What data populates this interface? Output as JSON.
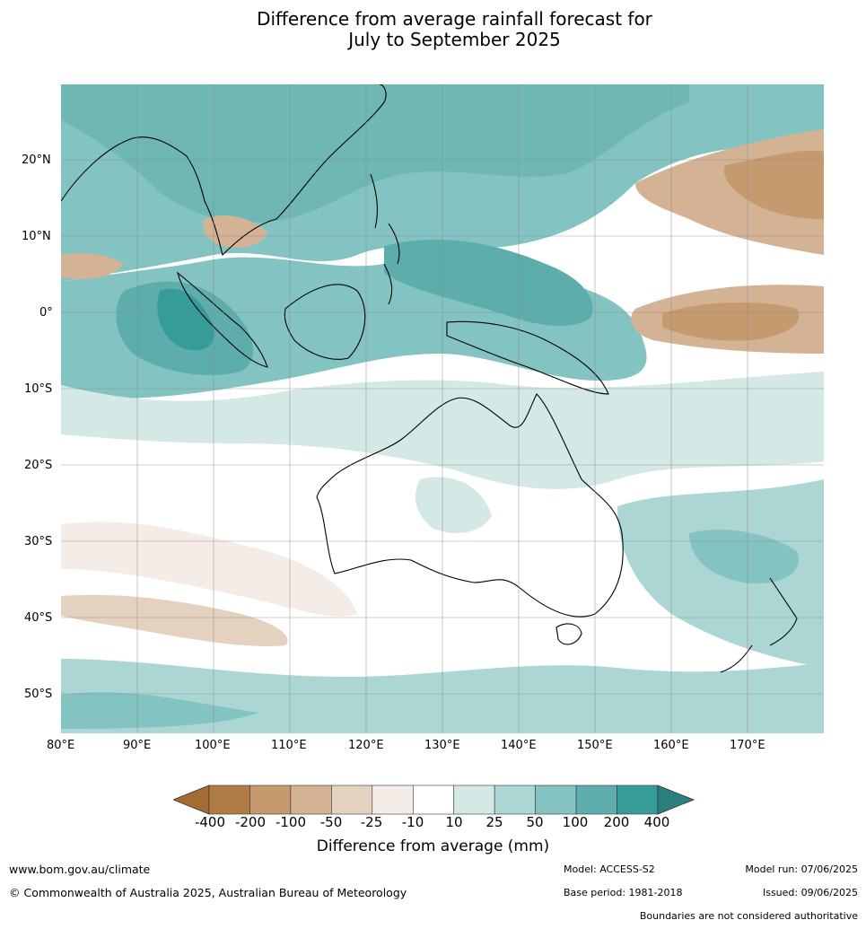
{
  "title": {
    "line1": "Difference from average rainfall forecast for",
    "line2": "July to September 2025"
  },
  "map": {
    "lon_labels": [
      "80°E",
      "90°E",
      "100°E",
      "110°E",
      "120°E",
      "130°E",
      "140°E",
      "150°E",
      "160°E",
      "170°E"
    ],
    "lat_labels": [
      "20°N",
      "10°N",
      "0°",
      "10°S",
      "20°S",
      "30°S",
      "40°S",
      "50°S"
    ]
  },
  "colorbar": {
    "ticks": [
      "-400",
      "-200",
      "-100",
      "-50",
      "-25",
      "-10",
      "10",
      "25",
      "50",
      "100",
      "200",
      "400"
    ],
    "colors": [
      "#a46b34",
      "#b07b44",
      "#c49a6e",
      "#d3b394",
      "#e5d1bf",
      "#f4ece6",
      "#ffffff",
      "#d4e8e6",
      "#acd6d4",
      "#83c3c1",
      "#5cadac",
      "#359c98",
      "#2b7f7c"
    ],
    "label": "Difference from average (mm)"
  },
  "footer": {
    "url": "www.bom.gov.au/climate",
    "copyright": "© Commonwealth of Australia 2025, Australian Bureau of Meteorology",
    "model": "Model: ACCESS-S2",
    "base_period": "Base period: 1981-2018",
    "model_run": "Model run: 07/06/2025",
    "issued": "Issued: 09/06/2025",
    "boundaries": "Boundaries are not considered authoritative"
  }
}
